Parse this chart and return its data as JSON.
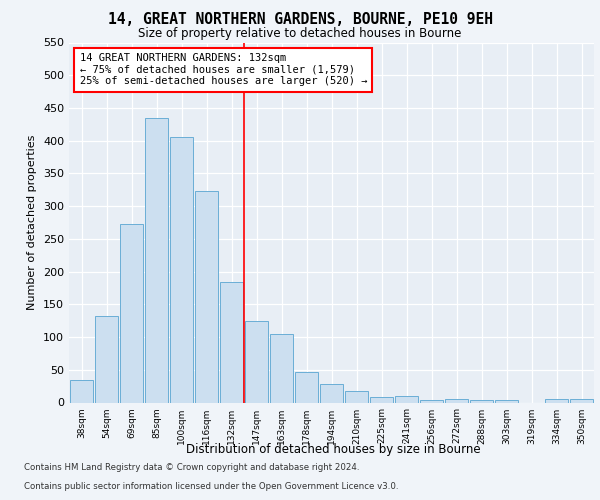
{
  "title1": "14, GREAT NORTHERN GARDENS, BOURNE, PE10 9EH",
  "title2": "Size of property relative to detached houses in Bourne",
  "xlabel": "Distribution of detached houses by size in Bourne",
  "ylabel": "Number of detached properties",
  "categories": [
    "38sqm",
    "54sqm",
    "69sqm",
    "85sqm",
    "100sqm",
    "116sqm",
    "132sqm",
    "147sqm",
    "163sqm",
    "178sqm",
    "194sqm",
    "210sqm",
    "225sqm",
    "241sqm",
    "256sqm",
    "272sqm",
    "288sqm",
    "303sqm",
    "319sqm",
    "334sqm",
    "350sqm"
  ],
  "values": [
    35,
    132,
    272,
    435,
    405,
    323,
    184,
    125,
    105,
    46,
    29,
    18,
    8,
    10,
    4,
    5,
    4,
    4,
    0,
    6,
    6
  ],
  "bar_color": "#ccdff0",
  "bar_edge_color": "#6aaed6",
  "vline_index": 6.5,
  "annotation_text": "14 GREAT NORTHERN GARDENS: 132sqm\n← 75% of detached houses are smaller (1,579)\n25% of semi-detached houses are larger (520) →",
  "ylim": [
    0,
    550
  ],
  "yticks": [
    0,
    50,
    100,
    150,
    200,
    250,
    300,
    350,
    400,
    450,
    500,
    550
  ],
  "footer1": "Contains HM Land Registry data © Crown copyright and database right 2024.",
  "footer2": "Contains public sector information licensed under the Open Government Licence v3.0.",
  "fig_bg_color": "#f0f4f9",
  "plot_bg_color": "#e8eef5"
}
